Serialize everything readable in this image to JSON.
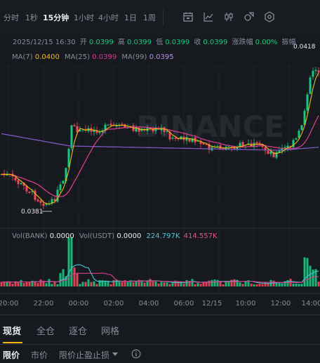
{
  "toolbar": {
    "timeframes": [
      "分时",
      "1秒",
      "15分钟",
      "1小时",
      "4小时",
      "1日",
      "1周"
    ],
    "active_timeframe": "15分钟",
    "icons": [
      "calendar-icon",
      "indicator-icon",
      "candle-type-icon",
      "shapes-icon",
      "settings-icon"
    ]
  },
  "ohlc": {
    "date": "2025/12/15 16:30",
    "open_label": "开",
    "open": "0.0399",
    "high_label": "高",
    "high": "0.0399",
    "low_label": "低",
    "low": "0.0399",
    "close_label": "收",
    "close": "0.0399",
    "change_label": "涨跌幅",
    "change": "0.00%",
    "amp_label": "振幅"
  },
  "ma": {
    "ma7_label": "MA(7)",
    "ma7_value": "0.0400",
    "ma25_label": "MA(25)",
    "ma25_value": "0.0399",
    "ma99_label": "MA(99)",
    "ma99_value": "0.0395"
  },
  "vol": {
    "bank_label": "Vol(BANK)",
    "bank_value": "0.0000",
    "usdt_label": "Vol(USDT)",
    "usdt_value": "0.0000",
    "ma5_value": "224.797K",
    "ma10_value": "414.557K"
  },
  "chart_data": {
    "type": "candlestick",
    "x_ticks": [
      "20:00",
      "22:00",
      "00:00",
      "02:00",
      "04:00",
      "06:00",
      "12/15",
      "10:00",
      "12:00",
      "14:00"
    ],
    "low_marker": "0.0381",
    "high_marker": "0.0418",
    "watermark": "BINANCE",
    "colors": {
      "up": "#0ecb81",
      "down": "#f6465d",
      "ma7": "#f0b90b",
      "ma25": "#d63b8e",
      "ma99": "#7e57c2",
      "vol_ma5": "#49c7d6",
      "vol_ma10": "#d63b8e"
    }
  },
  "bottom_tabs": [
    "现货",
    "全仓",
    "逐仓",
    "网格"
  ],
  "order_tabs": [
    "限价",
    "市价",
    "限价止盈止损"
  ]
}
